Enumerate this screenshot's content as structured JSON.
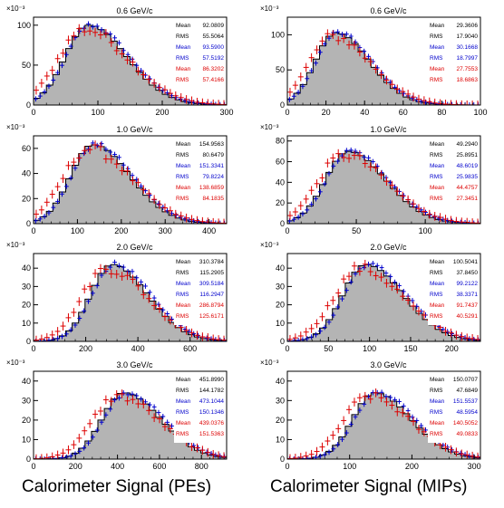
{
  "chart_data": [
    {
      "type": "histogram",
      "title": "0.6 GeV/c",
      "xlim": [
        0,
        300
      ],
      "ylim": [
        0,
        110
      ],
      "xticks": [
        0,
        100,
        200,
        300
      ],
      "yticks": [
        0,
        50,
        100
      ],
      "yexp": "×10⁻³",
      "mu": 85,
      "sigma": 48,
      "peak": 100,
      "stats": [
        {
          "label": "Mean",
          "value": "92.0809",
          "color": "#000000"
        },
        {
          "label": "RMS",
          "value": "55.5064",
          "color": "#000000"
        },
        {
          "label": "Mean",
          "value": "93.5900",
          "color": "#0000cc"
        },
        {
          "label": "RMS",
          "value": "57.5192",
          "color": "#0000cc"
        },
        {
          "label": "Mean",
          "value": "86.3202",
          "color": "#dd0000"
        },
        {
          "label": "RMS",
          "value": "57.4166",
          "color": "#dd0000"
        }
      ]
    },
    {
      "type": "histogram",
      "title": "0.6 GeV/c",
      "xlim": [
        0,
        100
      ],
      "ylim": [
        0,
        125
      ],
      "xticks": [
        0,
        20,
        40,
        60,
        80,
        100
      ],
      "yticks": [
        0,
        50,
        100
      ],
      "yexp": "×10⁻³",
      "mu": 25,
      "sigma": 14,
      "peak": 103,
      "stats": [
        {
          "label": "Mean",
          "value": "29.3606",
          "color": "#000000"
        },
        {
          "label": "RMS",
          "value": "17.9040",
          "color": "#000000"
        },
        {
          "label": "Mean",
          "value": "30.1668",
          "color": "#0000cc"
        },
        {
          "label": "RMS",
          "value": "18.7997",
          "color": "#0000cc"
        },
        {
          "label": "Mean",
          "value": "27.7553",
          "color": "#dd0000"
        },
        {
          "label": "RMS",
          "value": "18.6863",
          "color": "#dd0000"
        }
      ]
    },
    {
      "type": "histogram",
      "title": "1.0 GeV/c",
      "xlim": [
        0,
        440
      ],
      "ylim": [
        0,
        70
      ],
      "xticks": [
        0,
        100,
        200,
        300,
        400
      ],
      "yticks": [
        0,
        20,
        40,
        60
      ],
      "yexp": "×10⁻³",
      "mu": 135,
      "sigma": 68,
      "peak": 63,
      "stats": [
        {
          "label": "Mean",
          "value": "154.9563",
          "color": "#000000"
        },
        {
          "label": "RMS",
          "value": "80.6479",
          "color": "#000000"
        },
        {
          "label": "Mean",
          "value": "151.3341",
          "color": "#0000cc"
        },
        {
          "label": "RMS",
          "value": "79.8224",
          "color": "#0000cc"
        },
        {
          "label": "Mean",
          "value": "138.6859",
          "color": "#dd0000"
        },
        {
          "label": "RMS",
          "value": "84.1835",
          "color": "#dd0000"
        }
      ]
    },
    {
      "type": "histogram",
      "title": "1.0 GeV/c",
      "xlim": [
        0,
        140
      ],
      "ylim": [
        0,
        85
      ],
      "xticks": [
        0,
        50,
        100
      ],
      "yticks": [
        0,
        20,
        40,
        60,
        80
      ],
      "yexp": "×10⁻³",
      "mu": 44,
      "sigma": 22,
      "peak": 70,
      "stats": [
        {
          "label": "Mean",
          "value": "49.2940",
          "color": "#000000"
        },
        {
          "label": "RMS",
          "value": "25.8951",
          "color": "#000000"
        },
        {
          "label": "Mean",
          "value": "48.6019",
          "color": "#0000cc"
        },
        {
          "label": "RMS",
          "value": "25.9835",
          "color": "#0000cc"
        },
        {
          "label": "Mean",
          "value": "44.4757",
          "color": "#dd0000"
        },
        {
          "label": "RMS",
          "value": "27.3451",
          "color": "#dd0000"
        }
      ]
    },
    {
      "type": "histogram",
      "title": "2.0 GeV/c",
      "xlim": [
        0,
        740
      ],
      "ylim": [
        0,
        48
      ],
      "xticks": [
        0,
        200,
        400,
        600
      ],
      "yticks": [
        0,
        10,
        20,
        30,
        40
      ],
      "yexp": "×10⁻³",
      "mu": 300,
      "sigma": 110,
      "peak": 42,
      "stats": [
        {
          "label": "Mean",
          "value": "310.3784",
          "color": "#000000"
        },
        {
          "label": "RMS",
          "value": "115.2905",
          "color": "#000000"
        },
        {
          "label": "Mean",
          "value": "309.5184",
          "color": "#0000cc"
        },
        {
          "label": "RMS",
          "value": "116.2947",
          "color": "#0000cc"
        },
        {
          "label": "Mean",
          "value": "286.8794",
          "color": "#dd0000"
        },
        {
          "label": "RMS",
          "value": "125.6171",
          "color": "#dd0000"
        }
      ]
    },
    {
      "type": "histogram",
      "title": "2.0 GeV/c",
      "xlim": [
        0,
        235
      ],
      "ylim": [
        0,
        48
      ],
      "xticks": [
        0,
        50,
        100,
        150,
        200
      ],
      "yticks": [
        0,
        10,
        20,
        30,
        40
      ],
      "yexp": "×10⁻³",
      "mu": 95,
      "sigma": 37,
      "peak": 42,
      "stats": [
        {
          "label": "Mean",
          "value": "100.5041",
          "color": "#000000"
        },
        {
          "label": "RMS",
          "value": "37.8450",
          "color": "#000000"
        },
        {
          "label": "Mean",
          "value": "99.2122",
          "color": "#0000cc"
        },
        {
          "label": "RMS",
          "value": "38.3371",
          "color": "#0000cc"
        },
        {
          "label": "Mean",
          "value": "91.7437",
          "color": "#dd0000"
        },
        {
          "label": "RMS",
          "value": "40.5291",
          "color": "#dd0000"
        }
      ]
    },
    {
      "type": "histogram",
      "title": "3.0 GeV/c",
      "xlim": [
        0,
        920
      ],
      "ylim": [
        0,
        45
      ],
      "xticks": [
        0,
        200,
        400,
        600,
        800
      ],
      "yticks": [
        0,
        10,
        20,
        30,
        40
      ],
      "yexp": "×10⁻³",
      "mu": 430,
      "sigma": 140,
      "peak": 34,
      "stats": [
        {
          "label": "Mean",
          "value": "451.8990",
          "color": "#000000"
        },
        {
          "label": "RMS",
          "value": "144.1782",
          "color": "#000000"
        },
        {
          "label": "Mean",
          "value": "473.1044",
          "color": "#0000cc"
        },
        {
          "label": "RMS",
          "value": "150.1346",
          "color": "#0000cc"
        },
        {
          "label": "Mean",
          "value": "439.0376",
          "color": "#dd0000"
        },
        {
          "label": "RMS",
          "value": "151.5363",
          "color": "#dd0000"
        }
      ]
    },
    {
      "type": "histogram",
      "title": "3.0 GeV/c",
      "xlim": [
        0,
        310
      ],
      "ylim": [
        0,
        45
      ],
      "xticks": [
        0,
        100,
        200,
        300
      ],
      "yticks": [
        0,
        10,
        20,
        30,
        40
      ],
      "yexp": "×10⁻³",
      "mu": 140,
      "sigma": 47,
      "peak": 34,
      "stats": [
        {
          "label": "Mean",
          "value": "150.0707",
          "color": "#000000"
        },
        {
          "label": "RMS",
          "value": "47.6849",
          "color": "#000000"
        },
        {
          "label": "Mean",
          "value": "151.5537",
          "color": "#0000cc"
        },
        {
          "label": "RMS",
          "value": "48.5954",
          "color": "#0000cc"
        },
        {
          "label": "Mean",
          "value": "140.5052",
          "color": "#dd0000"
        },
        {
          "label": "RMS",
          "value": "49.0833",
          "color": "#dd0000"
        }
      ]
    }
  ],
  "xlabels": {
    "left": "Calorimeter Signal (PEs)",
    "right": "Calorimeter Signal (MIPs)"
  },
  "colors": {
    "fill": "#b4b4b4",
    "outline": "#000000",
    "blue": "#0000cc",
    "red": "#dd0000"
  }
}
